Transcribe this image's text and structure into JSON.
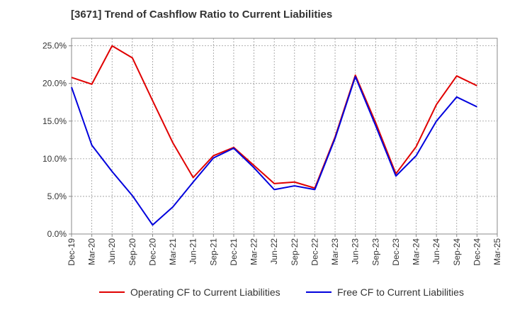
{
  "title": "[3671]  Trend of Cashflow Ratio to Current Liabilities",
  "chart_data": {
    "type": "line",
    "title": "[3671]  Trend of Cashflow Ratio to Current Liabilities",
    "xlabel": "",
    "ylabel": "",
    "ylim": [
      0,
      26
    ],
    "y_ticks": [
      "0.0%",
      "5.0%",
      "10.0%",
      "15.0%",
      "20.0%",
      "25.0%"
    ],
    "y_tick_values": [
      0,
      5,
      10,
      15,
      20,
      25
    ],
    "categories": [
      "Dec-19",
      "Mar-20",
      "Jun-20",
      "Sep-20",
      "Dec-20",
      "Mar-21",
      "Jun-21",
      "Sep-21",
      "Dec-21",
      "Mar-22",
      "Jun-22",
      "Sep-22",
      "Dec-22",
      "Mar-23",
      "Jun-23",
      "Sep-23",
      "Dec-23",
      "Mar-24",
      "Jun-24",
      "Sep-24",
      "Dec-24",
      "Mar-25"
    ],
    "grid": true,
    "legend_position": "bottom",
    "series": [
      {
        "name": "Operating CF to Current Liabilities",
        "color": "#e00000",
        "values": [
          20.8,
          19.9,
          25.0,
          23.4,
          17.7,
          12.1,
          7.5,
          10.4,
          11.5,
          9.1,
          6.7,
          6.9,
          6.1,
          12.9,
          21.1,
          14.8,
          8.0,
          11.6,
          17.2,
          21.0,
          19.7,
          null
        ]
      },
      {
        "name": "Free CF to Current Liabilities",
        "color": "#0000dd",
        "values": [
          19.5,
          11.8,
          8.3,
          5.1,
          1.2,
          3.6,
          6.9,
          10.1,
          11.4,
          8.8,
          5.9,
          6.4,
          5.9,
          12.7,
          20.9,
          14.4,
          7.7,
          10.4,
          15.0,
          18.2,
          16.9,
          null
        ]
      }
    ]
  }
}
